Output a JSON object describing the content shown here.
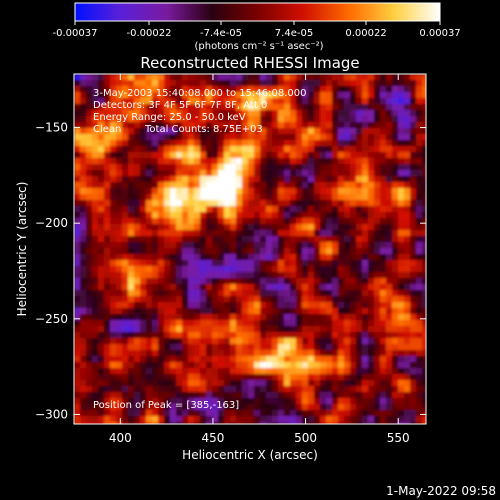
{
  "colorbar": {
    "tick_labels": [
      "-0.00037",
      "-0.00022",
      "-7.4e-05",
      "7.4e-05",
      "0.00022",
      "0.00037"
    ],
    "tick_values": [
      -0.00037,
      -0.00022,
      -7.4e-05,
      7.4e-05,
      0.00022,
      0.00037
    ],
    "range": [
      -0.00037,
      0.00037
    ],
    "units_label": "(photons cm⁻² s⁻¹ asec⁻²)",
    "colors": [
      "#0010ff",
      "#5a20d8",
      "#7a1aa0",
      "#2a0010",
      "#7a0000",
      "#d01000",
      "#ff6a00",
      "#ffd040",
      "#ffffff"
    ]
  },
  "chart_data": {
    "type": "heatmap",
    "title": "Reconstructed RHESSI Image",
    "xlabel": "Heliocentric X (arcsec)",
    "ylabel": "Heliocentric Y (arcsec)",
    "xlim": [
      375,
      565
    ],
    "ylim": [
      -305,
      -122
    ],
    "x_ticks": [
      400,
      450,
      500,
      550
    ],
    "y_ticks": [
      -150,
      -200,
      -250,
      -300
    ],
    "x_tick_labels": [
      "400",
      "450",
      "500",
      "550"
    ],
    "y_tick_labels": [
      "−150",
      "−200",
      "−250",
      "−300"
    ],
    "annotations": [
      "3-May-2003 15:40:08.000 to 15:46:08.000",
      "Detectors: 3F 4F 5F 6F 7F 8F, Att 0",
      "Energy Range: 25.0 - 50.0 keV",
      "Clean",
      "Total Counts: 8.75E+03"
    ],
    "peak_label": "Position of Peak = [385,-163]",
    "peak_position": [
      385,
      -163
    ],
    "sources": [
      {
        "x": 385,
        "y": -160,
        "value": 0.00037
      },
      {
        "x": 445,
        "y": -185,
        "value": 0.00033
      },
      {
        "x": 462,
        "y": -173,
        "value": 0.00031
      },
      {
        "x": 430,
        "y": -175,
        "value": 0.00026
      },
      {
        "x": 480,
        "y": -140,
        "value": 0.00022
      },
      {
        "x": 465,
        "y": -255,
        "value": 0.00024
      },
      {
        "x": 505,
        "y": -262,
        "value": 0.00022
      },
      {
        "x": 480,
        "y": -270,
        "value": 0.0002
      },
      {
        "x": 540,
        "y": -190,
        "value": 0.00018
      },
      {
        "x": 550,
        "y": -250,
        "value": 0.00016
      },
      {
        "x": 395,
        "y": -225,
        "value": 0.00015
      },
      {
        "x": 420,
        "y": -290,
        "value": 0.00012
      },
      {
        "x": 520,
        "y": -300,
        "value": 0.00012
      },
      {
        "x": 410,
        "y": -130,
        "value": 0.00014
      },
      {
        "x": 500,
        "y": -200,
        "value": 0.0001
      }
    ]
  },
  "footer": {
    "timestamp": "1-May-2022 09:58"
  }
}
